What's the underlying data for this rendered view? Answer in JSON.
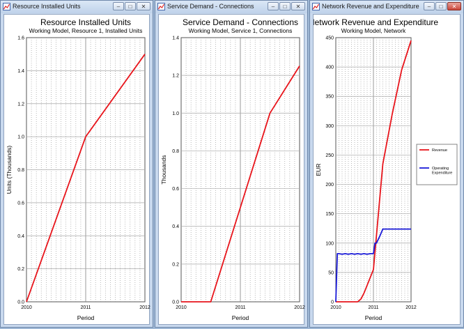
{
  "windows": [
    {
      "title": "Resource Installed Units",
      "active": false,
      "chart_data": {
        "type": "line",
        "title": "Resource Installed Units",
        "subtitle": "Working Model, Resource 1, Installed Units",
        "xlabel": "Period",
        "ylabel": "Units  (Thousands)",
        "xlim": [
          2010,
          2012
        ],
        "ylim": [
          0,
          1.6
        ],
        "yticks": [
          "0.0",
          "0.2",
          "0.4",
          "0.6",
          "0.8",
          "1.0",
          "1.2",
          "1.4",
          "1.6"
        ],
        "xticks": [
          "2010",
          "2011",
          "2012"
        ],
        "grid": true,
        "series": [
          {
            "color": "#e8141b",
            "x": [
              2010,
              2011,
              2012
            ],
            "y": [
              0,
              1.0,
              1.5
            ]
          }
        ]
      }
    },
    {
      "title": "Service Demand - Connections",
      "active": false,
      "chart_data": {
        "type": "line",
        "title": "Service Demand - Connections",
        "subtitle": "Working Model, Service 1, Connections",
        "xlabel": "Period",
        "ylabel": "Thousands",
        "xlim": [
          2010,
          2012
        ],
        "ylim": [
          0,
          1.4
        ],
        "yticks": [
          "0.0",
          "0.2",
          "0.4",
          "0.6",
          "0.8",
          "1.0",
          "1.2",
          "1.4"
        ],
        "xticks": [
          "2010",
          "2011",
          "2012"
        ],
        "grid": true,
        "series": [
          {
            "color": "#e8141b",
            "x": [
              2010,
              2010.5,
              2011.5,
              2012
            ],
            "y": [
              0,
              0,
              1.0,
              1.25
            ]
          }
        ]
      }
    },
    {
      "title": "Network Revenue and Expenditure",
      "active": true,
      "chart_data": {
        "type": "line",
        "title": "Network Revenue and Expenditure",
        "subtitle": "Working Model, Network",
        "xlabel": "Period",
        "ylabel": "EUR",
        "xlim": [
          2010,
          2012
        ],
        "ylim": [
          0,
          450
        ],
        "yticks": [
          "0",
          "50",
          "100",
          "150",
          "200",
          "250",
          "300",
          "350",
          "400",
          "450"
        ],
        "xticks": [
          "2010",
          "2011",
          "2012"
        ],
        "grid": true,
        "legend": "right",
        "series": [
          {
            "name": "Revenue",
            "color": "#e8141b",
            "x": [
              2010,
              2010.33,
              2010.42,
              2010.58,
              2010.67,
              2010.75,
              2011,
              2011.25,
              2011.5,
              2011.75,
              2012
            ],
            "y": [
              0,
              0,
              0,
              0,
              5,
              15,
              55,
              235,
              320,
              395,
              445
            ]
          },
          {
            "name": "Operating Expenditure",
            "color": "#1a1ad8",
            "x": [
              2010,
              2010.04,
              2010.08,
              2010.17,
              2010.25,
              2010.33,
              2010.42,
              2010.5,
              2010.58,
              2010.67,
              2010.75,
              2010.83,
              2010.92,
              2011,
              2011.04,
              2011.08,
              2011.17,
              2011.25,
              2012
            ],
            "y": [
              0,
              82,
              82,
              81,
              82,
              81,
              82,
              81,
              82,
              81,
              82,
              81,
              82,
              82,
              100,
              100,
              112,
              124,
              124
            ]
          }
        ]
      }
    }
  ]
}
